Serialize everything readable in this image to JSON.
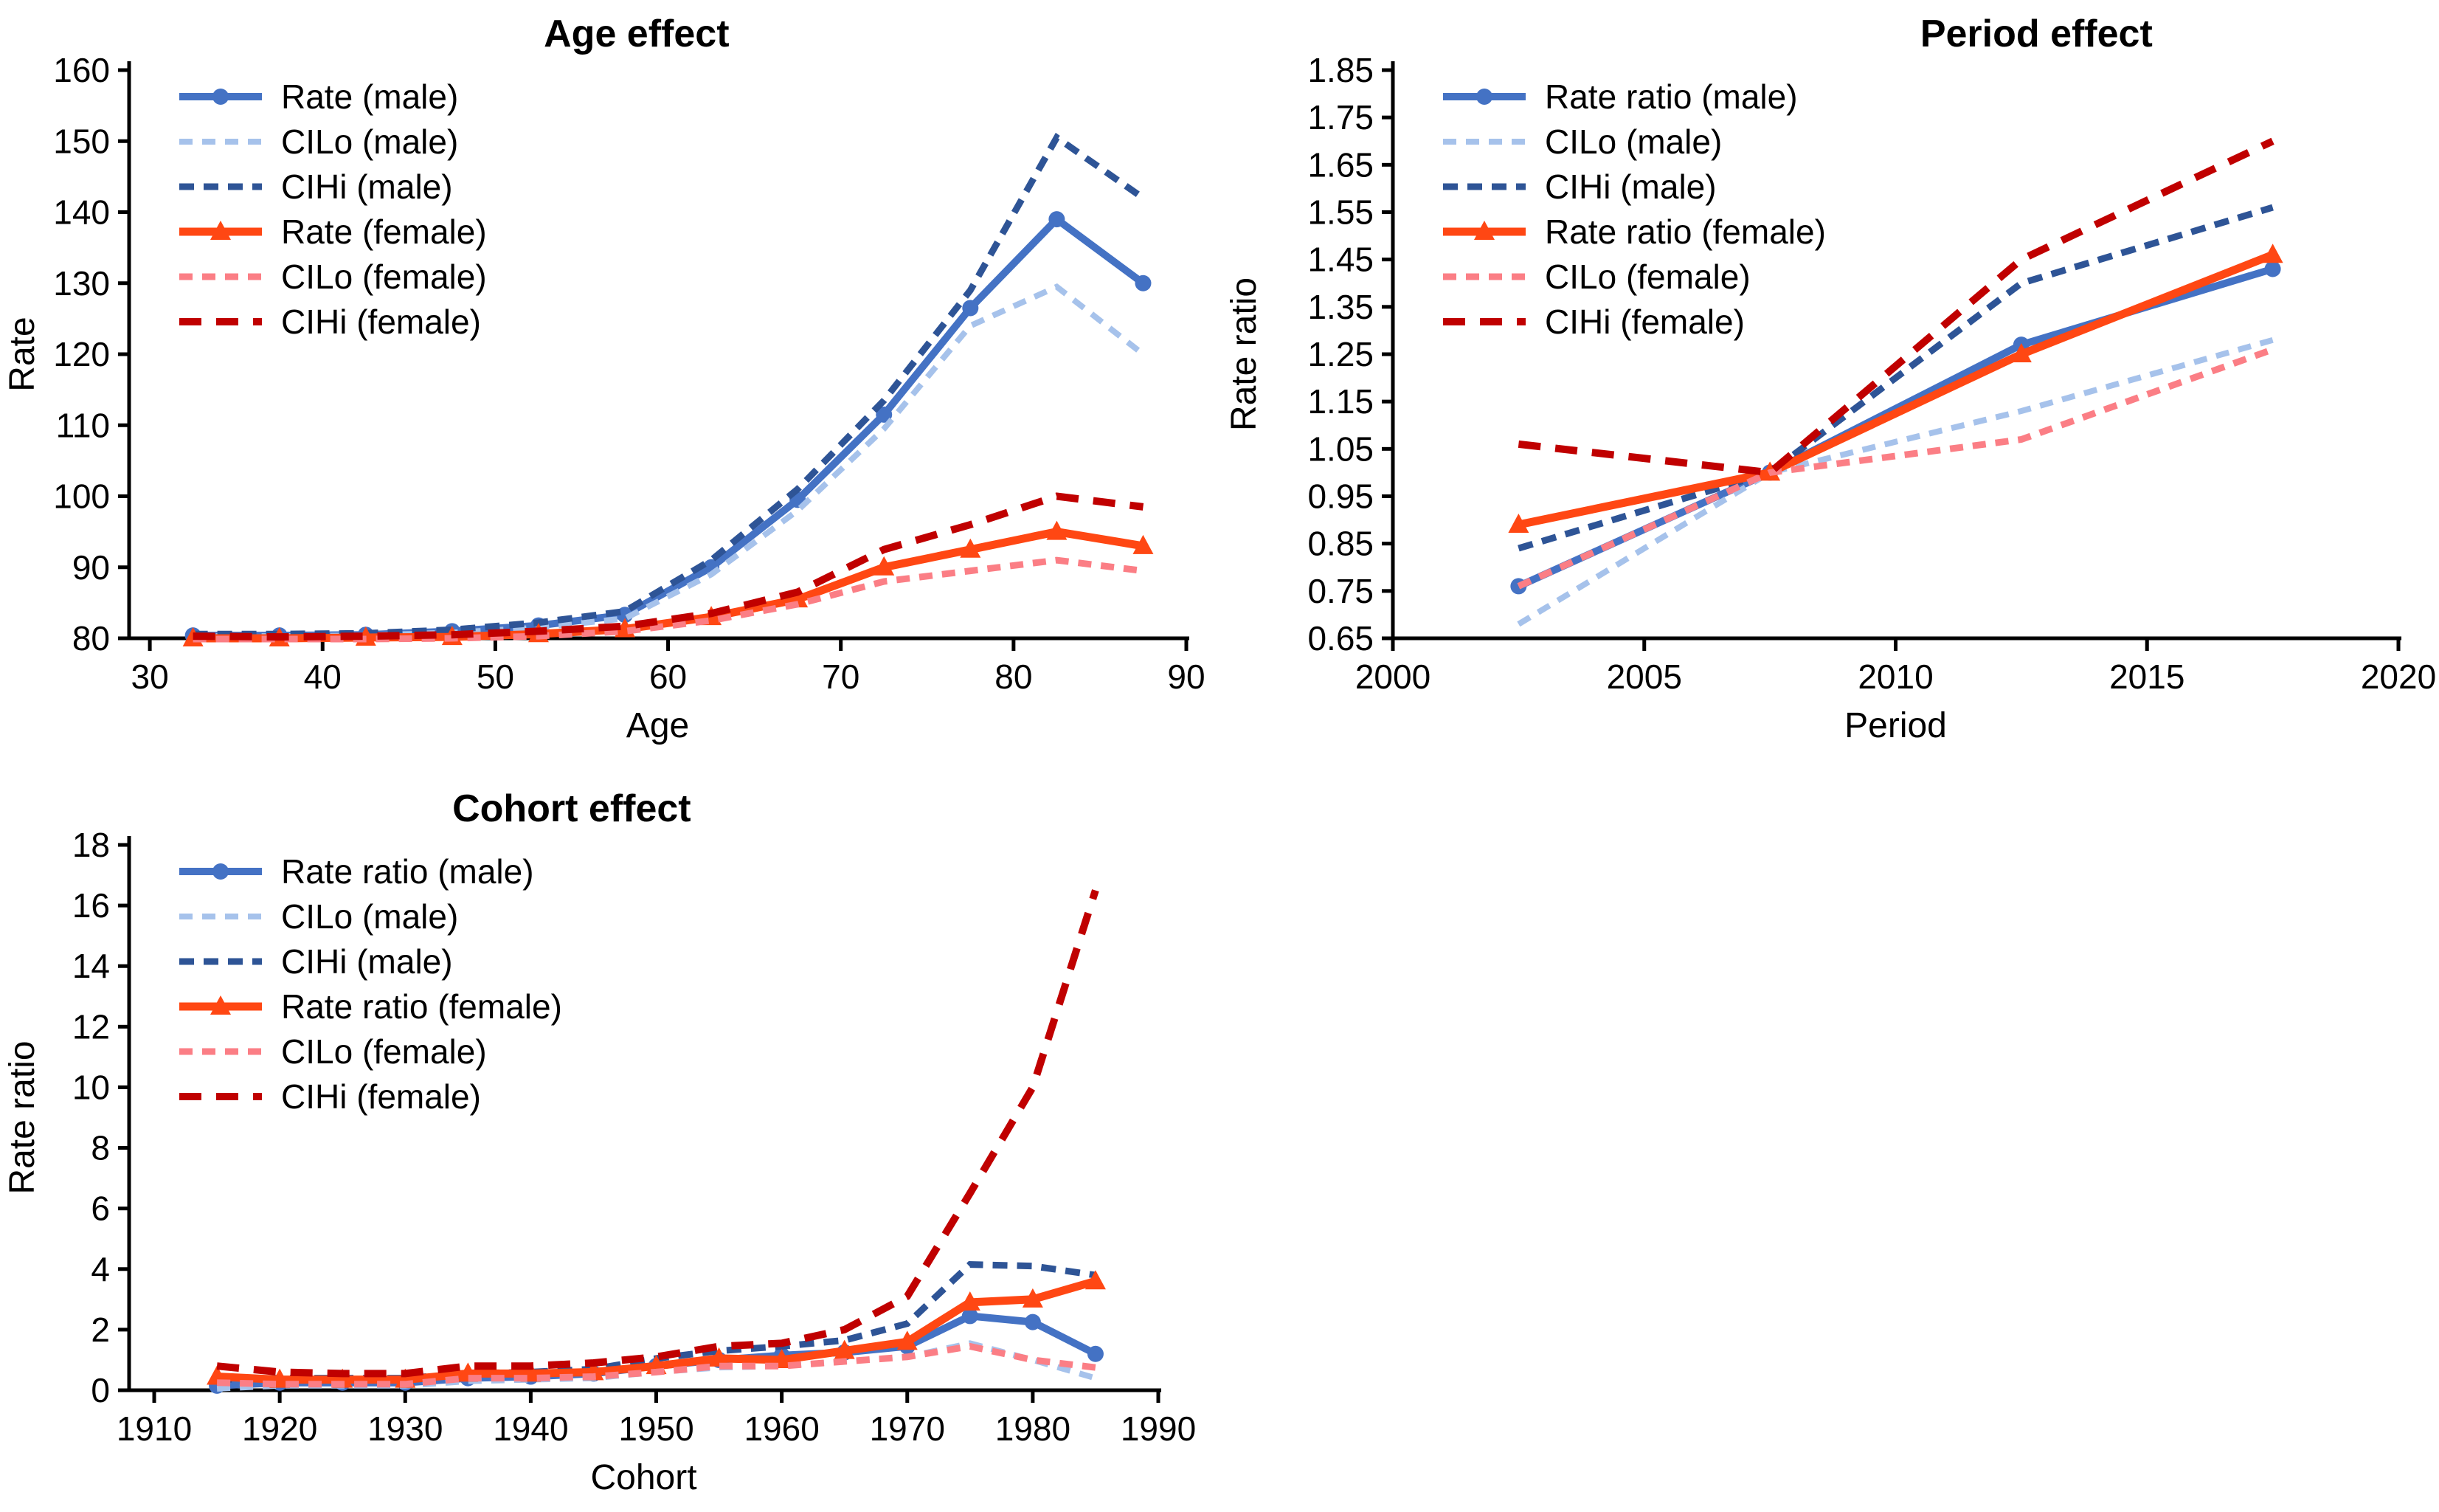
{
  "figure": {
    "background": "#ffffff",
    "accent_colors": {
      "male_rate": "#4472C4",
      "male_cilo": "#A6C2EB",
      "male_cihi": "#2E5496",
      "female_rate": "#FF4713",
      "female_cilo": "#FB7E85",
      "female_cihi": "#C00000"
    }
  },
  "chart_data": [
    {
      "type": "line",
      "title": "Age effect",
      "xlabel": "Age",
      "ylabel": "Rate",
      "xlim": [
        28.8,
        90
      ],
      "ylim": [
        80,
        160
      ],
      "xticks": [
        30,
        40,
        50,
        60,
        70,
        80,
        90
      ],
      "yticks": [
        80,
        90,
        100,
        110,
        120,
        130,
        140,
        150,
        160
      ],
      "ytick_decimals": 0,
      "grid": false,
      "legend_position": "top-left",
      "title_frac": 0.48,
      "x": [
        32.5,
        37.5,
        42.5,
        47.5,
        52.5,
        57.5,
        62.5,
        67.5,
        72.5,
        77.5,
        82.5,
        87.5
      ],
      "series": [
        {
          "name": "Rate (male)",
          "color": "#4472C4",
          "dash": null,
          "width": 10,
          "marker": "circle",
          "values": [
            80.4,
            80.4,
            80.5,
            81.0,
            81.8,
            83.3,
            90.0,
            99.5,
            111.5,
            126.5,
            139.0,
            130.0
          ]
        },
        {
          "name": "CILo (male)",
          "color": "#A6C2EB",
          "dash": [
            18,
            13
          ],
          "width": 8,
          "marker": null,
          "values": [
            80.3,
            80.3,
            80.4,
            80.8,
            81.5,
            82.8,
            89.0,
            98.0,
            109.5,
            124.0,
            129.5,
            120.0
          ]
        },
        {
          "name": "CIHi (male)",
          "color": "#2E5496",
          "dash": [
            20,
            13
          ],
          "width": 9,
          "marker": null,
          "values": [
            80.6,
            80.6,
            80.7,
            81.2,
            82.2,
            83.8,
            91.0,
            101.0,
            113.5,
            129.0,
            150.5,
            142.0
          ]
        },
        {
          "name": "Rate (female)",
          "color": "#FF4713",
          "dash": null,
          "width": 11,
          "marker": "triangle",
          "values": [
            80.0,
            80.0,
            80.1,
            80.2,
            80.6,
            81.3,
            83.0,
            85.5,
            90.0,
            92.5,
            95.0,
            93.0
          ]
        },
        {
          "name": "CILo (female)",
          "color": "#FB7E85",
          "dash": [
            18,
            13
          ],
          "width": 9,
          "marker": null,
          "values": [
            79.9,
            79.9,
            79.9,
            80.0,
            80.3,
            81.0,
            82.5,
            84.8,
            88.0,
            89.5,
            91.0,
            89.5
          ]
        },
        {
          "name": "CIHi (female)",
          "color": "#C00000",
          "dash": [
            30,
            20
          ],
          "width": 10,
          "marker": null,
          "values": [
            80.3,
            80.2,
            80.3,
            80.5,
            81.0,
            81.7,
            83.5,
            86.5,
            92.5,
            96.0,
            100.0,
            98.5
          ]
        }
      ]
    },
    {
      "type": "line",
      "title": "Period effect",
      "xlabel": "Period",
      "ylabel": "Rate ratio",
      "xlim": [
        2000,
        2020
      ],
      "ylim": [
        0.65,
        1.85
      ],
      "xticks": [
        2000,
        2005,
        2010,
        2015,
        2020
      ],
      "yticks": [
        0.65,
        0.75,
        0.85,
        0.95,
        1.05,
        1.15,
        1.25,
        1.35,
        1.45,
        1.55,
        1.65,
        1.75,
        1.85
      ],
      "ytick_decimals": 2,
      "grid": false,
      "legend_position": "top-left",
      "title_frac": 0.64,
      "x": [
        2002.5,
        2007.5,
        2012.5,
        2017.5
      ],
      "series": [
        {
          "name": "Rate ratio (male)",
          "color": "#4472C4",
          "dash": null,
          "width": 10,
          "marker": "circle",
          "values": [
            0.76,
            1.0,
            1.27,
            1.43
          ]
        },
        {
          "name": "CILo (male)",
          "color": "#A6C2EB",
          "dash": [
            18,
            13
          ],
          "width": 8,
          "marker": null,
          "values": [
            0.68,
            1.0,
            1.13,
            1.28
          ]
        },
        {
          "name": "CIHi (male)",
          "color": "#2E5496",
          "dash": [
            20,
            13
          ],
          "width": 9,
          "marker": null,
          "values": [
            0.84,
            1.0,
            1.4,
            1.56
          ]
        },
        {
          "name": "Rate ratio (female)",
          "color": "#FF4713",
          "dash": null,
          "width": 11,
          "marker": "triangle",
          "values": [
            0.89,
            1.0,
            1.25,
            1.46
          ]
        },
        {
          "name": "CILo (female)",
          "color": "#FB7E85",
          "dash": [
            18,
            13
          ],
          "width": 9,
          "marker": null,
          "values": [
            0.76,
            1.0,
            1.07,
            1.26
          ]
        },
        {
          "name": "CIHi (female)",
          "color": "#C00000",
          "dash": [
            30,
            20
          ],
          "width": 10,
          "marker": null,
          "values": [
            1.06,
            1.0,
            1.45,
            1.7
          ]
        }
      ]
    },
    {
      "type": "line",
      "title": "Cohort effect",
      "xlabel": "Cohort",
      "ylabel": "Rate ratio",
      "xlim": [
        1908,
        1990
      ],
      "ylim": [
        0,
        18
      ],
      "xticks": [
        1910,
        1920,
        1930,
        1940,
        1950,
        1960,
        1970,
        1980,
        1990
      ],
      "yticks": [
        0,
        2,
        4,
        6,
        8,
        10,
        12,
        14,
        16,
        18
      ],
      "ytick_decimals": 0,
      "grid": false,
      "legend_position": "top-left",
      "title_frac": 0.43,
      "x": [
        1915,
        1920,
        1925,
        1930,
        1935,
        1940,
        1945,
        1950,
        1955,
        1960,
        1965,
        1970,
        1975,
        1980,
        1985
      ],
      "series": [
        {
          "name": "Rate ratio (male)",
          "color": "#4472C4",
          "dash": null,
          "width": 10,
          "marker": "circle",
          "values": [
            0.15,
            0.25,
            0.25,
            0.25,
            0.4,
            0.45,
            0.55,
            0.8,
            1.0,
            1.15,
            1.25,
            1.45,
            2.45,
            2.25,
            1.2
          ]
        },
        {
          "name": "CILo (male)",
          "color": "#A6C2EB",
          "dash": [
            18,
            13
          ],
          "width": 8,
          "marker": null,
          "values": [
            0.05,
            0.15,
            0.15,
            0.15,
            0.3,
            0.35,
            0.4,
            0.6,
            0.75,
            0.8,
            0.95,
            1.1,
            1.55,
            1.0,
            0.4
          ]
        },
        {
          "name": "CIHi (male)",
          "color": "#2E5496",
          "dash": [
            20,
            13
          ],
          "width": 9,
          "marker": null,
          "values": [
            0.35,
            0.4,
            0.4,
            0.4,
            0.55,
            0.6,
            0.7,
            1.05,
            1.3,
            1.45,
            1.65,
            2.2,
            4.15,
            4.1,
            3.8
          ]
        },
        {
          "name": "Rate ratio (female)",
          "color": "#FF4713",
          "dash": null,
          "width": 11,
          "marker": "triangle",
          "values": [
            0.45,
            0.35,
            0.35,
            0.35,
            0.55,
            0.55,
            0.6,
            0.8,
            1.05,
            1.0,
            1.3,
            1.6,
            2.9,
            3.0,
            3.6
          ]
        },
        {
          "name": "CILo (female)",
          "color": "#FB7E85",
          "dash": [
            18,
            13
          ],
          "width": 9,
          "marker": null,
          "values": [
            0.25,
            0.2,
            0.2,
            0.2,
            0.4,
            0.4,
            0.45,
            0.6,
            0.8,
            0.8,
            0.95,
            1.1,
            1.45,
            1.0,
            0.75
          ]
        },
        {
          "name": "CIHi (female)",
          "color": "#C00000",
          "dash": [
            30,
            20
          ],
          "width": 10,
          "marker": null,
          "values": [
            0.8,
            0.6,
            0.55,
            0.55,
            0.8,
            0.8,
            0.9,
            1.1,
            1.45,
            1.55,
            2.0,
            3.1,
            6.5,
            10.0,
            16.5
          ]
        }
      ]
    }
  ]
}
